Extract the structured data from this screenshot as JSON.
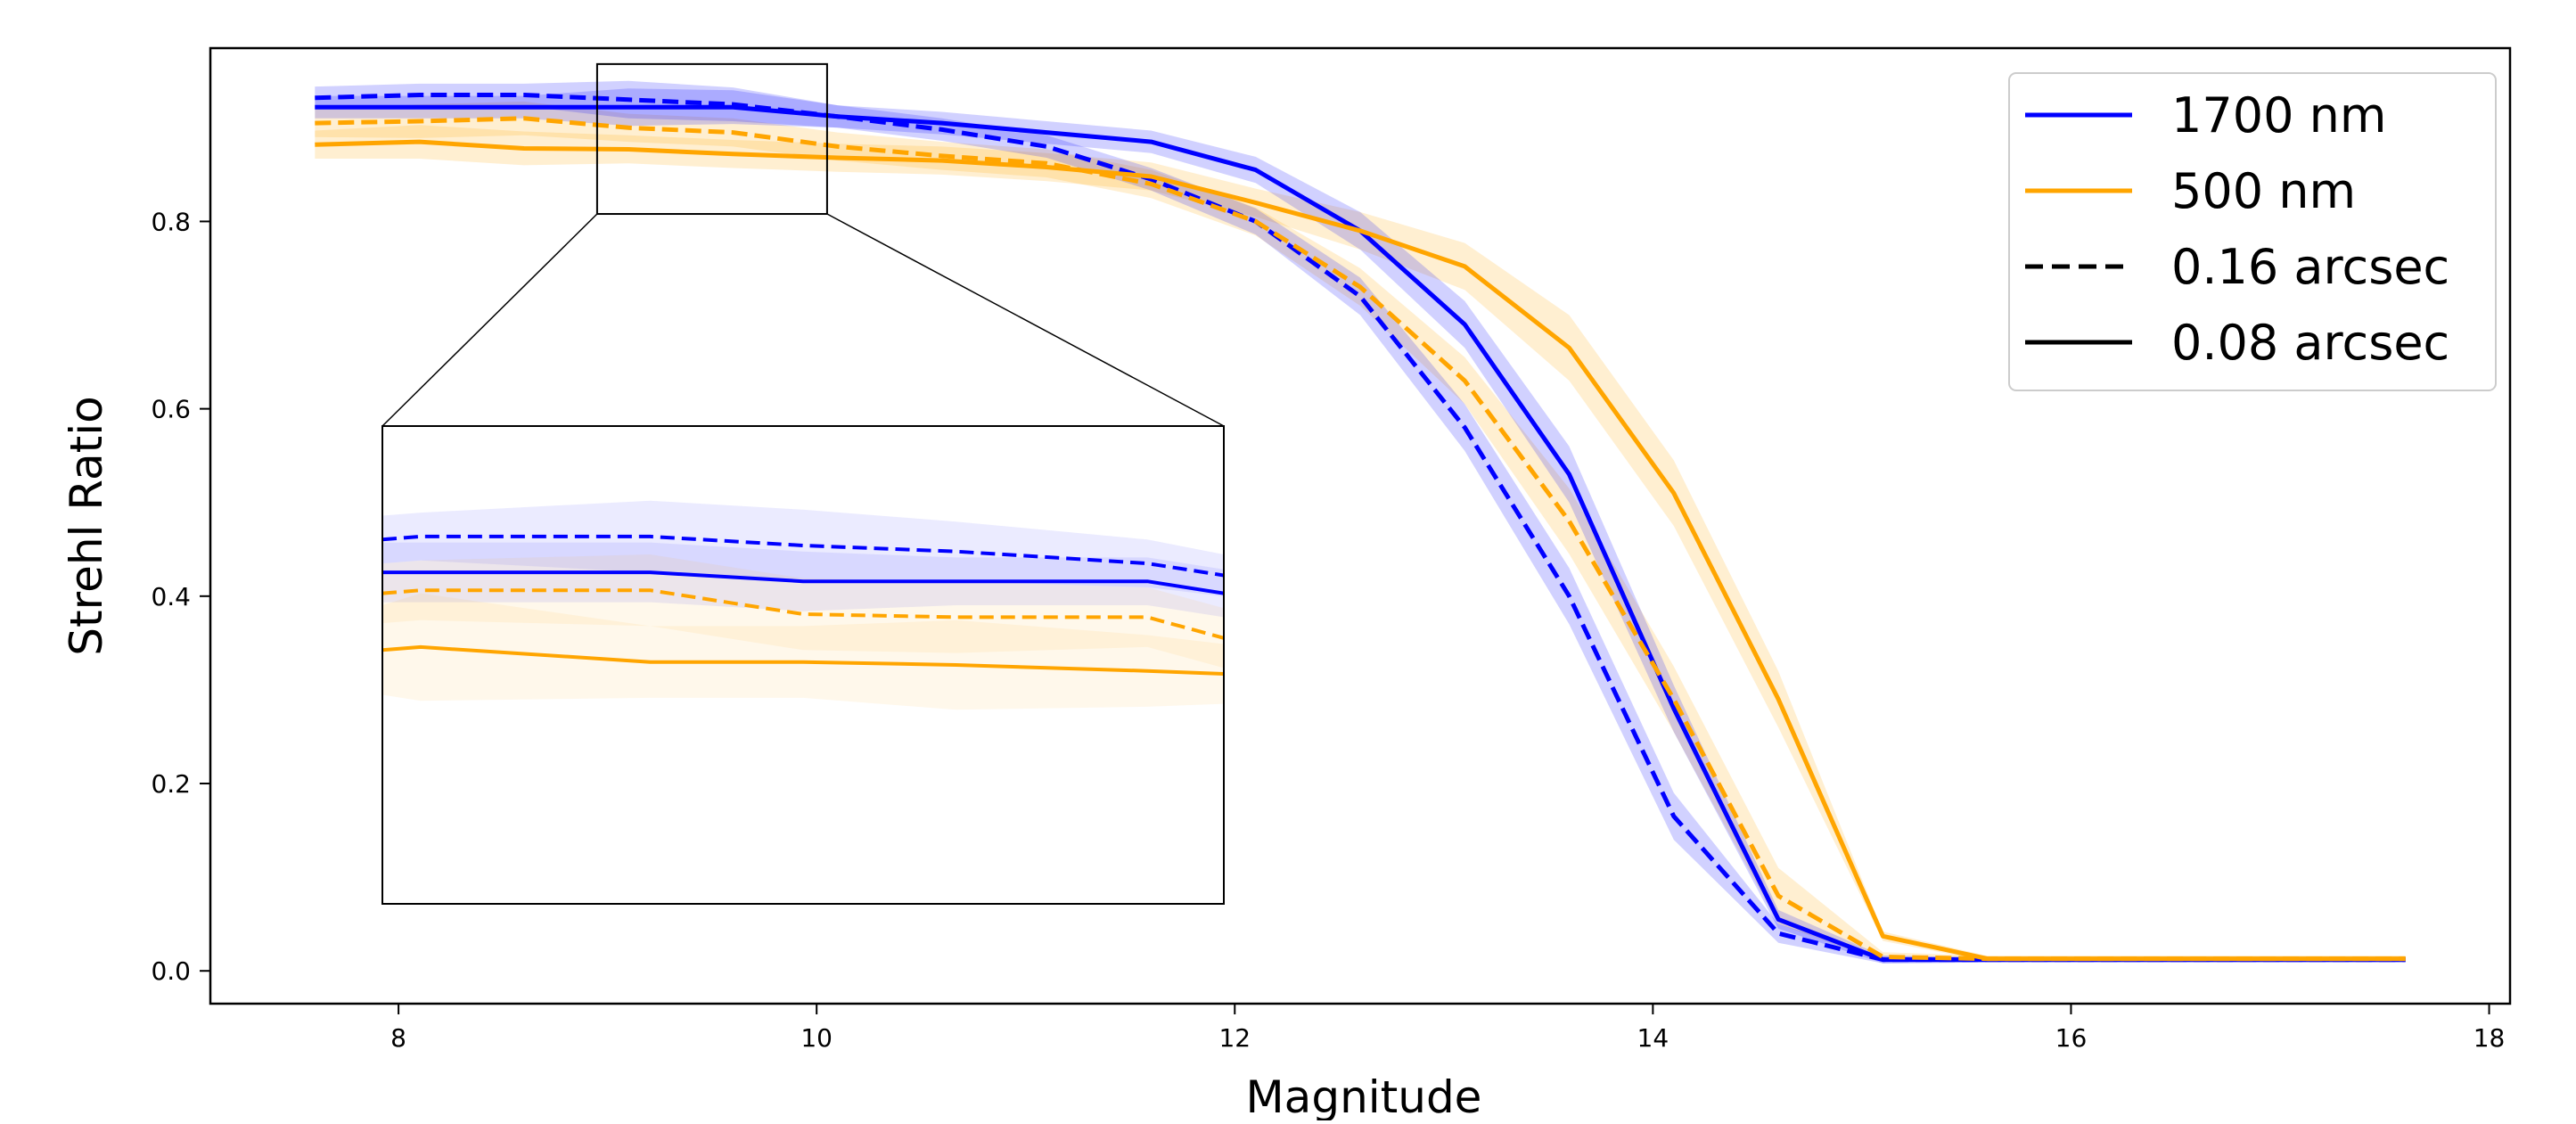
{
  "chart_data": {
    "type": "line",
    "title": "",
    "xlabel": "Magnitude",
    "ylabel": "Strehl Ratio",
    "xlim": [
      7.1,
      18.1
    ],
    "ylim": [
      -0.035,
      0.985
    ],
    "xticks": [
      8,
      10,
      12,
      14,
      16,
      18
    ],
    "yticks": [
      0.0,
      0.2,
      0.4,
      0.6,
      0.8
    ],
    "xtick_labels": [
      "8",
      "10",
      "12",
      "14",
      "16",
      "18"
    ],
    "ytick_labels": [
      "0.0",
      "0.2",
      "0.4",
      "0.6",
      "0.8"
    ],
    "grid": false,
    "legend_position": "top-right",
    "legend": [
      {
        "label": "1700 nm",
        "color": "#0000ff",
        "style": "solid"
      },
      {
        "label": "500 nm",
        "color": "#ffa500",
        "style": "solid"
      },
      {
        "label": "0.16 arcsec",
        "color": "#000000",
        "style": "dashed"
      },
      {
        "label": "0.08 arcsec",
        "color": "#000000",
        "style": "solid"
      }
    ],
    "x": [
      7.6,
      8.1,
      8.6,
      9.1,
      9.6,
      10.1,
      10.6,
      11.1,
      11.6,
      12.1,
      12.6,
      13.1,
      13.6,
      14.1,
      14.6,
      15.1,
      15.6,
      16.1,
      16.6,
      17.1,
      17.6
    ],
    "series": [
      {
        "name": "1700 nm, 0.08 arcsec",
        "color": "#0000ff",
        "dash": false,
        "values": [
          0.922,
          0.922,
          0.922,
          0.922,
          0.922,
          0.912,
          0.905,
          0.895,
          0.885,
          0.855,
          0.79,
          0.69,
          0.53,
          0.28,
          0.055,
          0.012,
          0.012,
          0.012,
          0.012,
          0.012,
          0.012
        ],
        "band": [
          0.012,
          0.012,
          0.012,
          0.02,
          0.018,
          0.012,
          0.012,
          0.012,
          0.012,
          0.014,
          0.02,
          0.025,
          0.03,
          0.025,
          0.01,
          0.004,
          0.003,
          0.003,
          0.003,
          0.003,
          0.003
        ]
      },
      {
        "name": "1700 nm, 0.16 arcsec",
        "color": "#0000ff",
        "dash": true,
        "values": [
          0.932,
          0.935,
          0.935,
          0.93,
          0.925,
          0.912,
          0.898,
          0.88,
          0.845,
          0.8,
          0.72,
          0.58,
          0.4,
          0.165,
          0.04,
          0.012,
          0.012,
          0.012,
          0.012,
          0.012,
          0.012
        ],
        "band": [
          0.012,
          0.012,
          0.012,
          0.02,
          0.018,
          0.012,
          0.012,
          0.012,
          0.012,
          0.014,
          0.02,
          0.025,
          0.03,
          0.025,
          0.01,
          0.004,
          0.003,
          0.003,
          0.003,
          0.003,
          0.003
        ]
      },
      {
        "name": "500 nm, 0.08 arcsec",
        "color": "#ffa500",
        "dash": false,
        "values": [
          0.882,
          0.885,
          0.878,
          0.877,
          0.872,
          0.868,
          0.865,
          0.858,
          0.848,
          0.82,
          0.79,
          0.752,
          0.665,
          0.51,
          0.29,
          0.037,
          0.013,
          0.013,
          0.013,
          0.013,
          0.013
        ],
        "band": [
          0.015,
          0.018,
          0.018,
          0.015,
          0.015,
          0.015,
          0.015,
          0.015,
          0.015,
          0.015,
          0.02,
          0.025,
          0.035,
          0.035,
          0.03,
          0.005,
          0.003,
          0.003,
          0.003,
          0.003,
          0.003
        ]
      },
      {
        "name": "500 nm, 0.16 arcsec",
        "color": "#ffa500",
        "dash": true,
        "values": [
          0.905,
          0.907,
          0.91,
          0.9,
          0.895,
          0.88,
          0.87,
          0.862,
          0.84,
          0.8,
          0.73,
          0.63,
          0.48,
          0.29,
          0.08,
          0.015,
          0.013,
          0.013,
          0.013,
          0.013,
          0.013
        ],
        "band": [
          0.015,
          0.018,
          0.018,
          0.015,
          0.015,
          0.015,
          0.015,
          0.015,
          0.015,
          0.015,
          0.02,
          0.025,
          0.035,
          0.035,
          0.03,
          0.005,
          0.003,
          0.003,
          0.003,
          0.003,
          0.003
        ]
      }
    ],
    "inset": {
      "xlim": [
        8.95,
        10.05
      ],
      "ylim": [
        0.808,
        0.968
      ],
      "x": [
        8.95,
        9.0,
        9.3,
        9.5,
        9.7,
        9.95,
        10.05
      ],
      "series": [
        {
          "name": "1700 nm, 0.16 arcsec",
          "color": "#0000ff",
          "dash": true,
          "values": [
            0.93,
            0.931,
            0.931,
            0.928,
            0.926,
            0.922,
            0.918
          ],
          "band": [
            0.008,
            0.008,
            0.012,
            0.012,
            0.01,
            0.008,
            0.007
          ]
        },
        {
          "name": "1700 nm, 0.08 arcsec",
          "color": "#0000ff",
          "dash": false,
          "values": [
            0.919,
            0.919,
            0.919,
            0.916,
            0.916,
            0.916,
            0.912
          ],
          "band": [
            0.01,
            0.01,
            0.01,
            0.01,
            0.008,
            0.008,
            0.008
          ]
        },
        {
          "name": "500 nm, 0.16 arcsec",
          "color": "#ffa500",
          "dash": true,
          "values": [
            0.912,
            0.913,
            0.913,
            0.905,
            0.904,
            0.904,
            0.897
          ],
          "band": [
            0.01,
            0.01,
            0.012,
            0.012,
            0.012,
            0.01,
            0.01
          ]
        },
        {
          "name": "500 nm, 0.08 arcsec",
          "color": "#ffa500",
          "dash": false,
          "values": [
            0.893,
            0.894,
            0.889,
            0.889,
            0.888,
            0.886,
            0.885
          ],
          "band": [
            0.015,
            0.018,
            0.012,
            0.012,
            0.015,
            0.012,
            0.01
          ]
        }
      ]
    }
  }
}
